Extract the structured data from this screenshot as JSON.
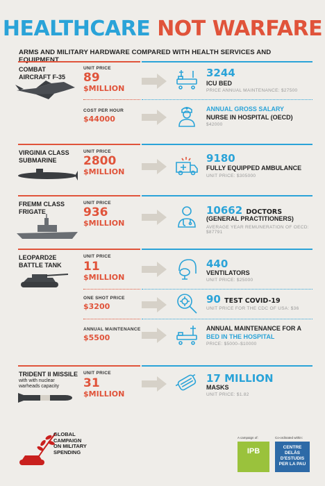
{
  "title": {
    "part1": "HEALTHCARE",
    "part2": "NOT WARFARE"
  },
  "subtitle": "ARMS AND MILITARY HARDWARE COMPARED WITH HEALTH SERVICES AND EQUIPMENT",
  "rows": {
    "f35": {
      "name1": "COMBAT",
      "name2": "AIRCRAFT F-35",
      "price_label": "UNIT PRICE",
      "price": "89",
      "unit": "$MILLION",
      "health_value": "3244",
      "health_line": "ICU BED",
      "health_note": "PRICE ANNUAL MAINTENANCE: $27500",
      "price2_label": "COST PER HOUR",
      "price2": "$44000",
      "health2_line1": "ANNUAL GROSS SALARY",
      "health2_line2": "NURSE IN HOSPITAL (OECD)",
      "health2_note": "$42000"
    },
    "sub": {
      "name1": "VIRGINIA CLASS",
      "name2": "SUBMARINE",
      "price_label": "UNIT PRICE",
      "price": "2800",
      "unit": "$MILLION",
      "health_value": "9180",
      "health_line": "FULLY EQUIPPED AMBULANCE",
      "health_note": "UNIT PRICE: $305000"
    },
    "frigate": {
      "name1": "FREMM CLASS",
      "name2": "FRIGATE",
      "price_label": "UNIT PRICE",
      "price": "936",
      "unit": "$MILLION",
      "health_value": "10662",
      "health_value_text": "DOCTORS",
      "health_line": "(GENERAL PRACTITIONERS)",
      "health_note": "AVERAGE YEAR REMUNERATION OF OECD: $87791"
    },
    "tank": {
      "name1": "LEOPARD2E",
      "name2": "BATTLE TANK",
      "price_label": "UNIT PRICE",
      "price": "11",
      "unit": "$MILLION",
      "health_value": "440",
      "health_line": "VENTILATORS",
      "health_note": "UNIT PRICE: $25000",
      "price2_label": "ONE SHOT PRICE",
      "price2": "$3200",
      "health2_value": "90",
      "health2_value_text": "TEST COVID-19",
      "health2_note": "UNIT PRICE FOR THE CDC OF USA: $36",
      "price3_label": "ANNUAL MAINTENANCE",
      "price3": "$5500",
      "health3_line1": "ANNUAL MAINTENANCE FOR A",
      "health3_line2": "BED IN THE HOSPITAL",
      "health3_note": "PRICE: $5000–$10000"
    },
    "trident": {
      "name1": "TRIDENT II MISSILE",
      "sub1": "with with nuclear",
      "sub2": "warheads capacity",
      "price_label": "UNIT PRICE",
      "price": "31",
      "unit": "$MILLION",
      "health_value": "17 MILLION",
      "health_line": "MASKS",
      "health_note": "UNIT PRICE: $1.82"
    }
  },
  "footer": {
    "gc1": "GLOBAL",
    "gc2": "CAMPAIGN",
    "gc3": "ON MILITARY",
    "gc4": "SPENDING",
    "campaign_of": "A campaign of:",
    "coordinated": "Co-ordinated within:",
    "ipb": "IPB",
    "cd1": "CENTRE DELÀS",
    "cd2": "D'ESTUDIS",
    "cd3": "PER LA PAU"
  },
  "colors": {
    "red": "#e0533a",
    "blue": "#2aa3d8",
    "background": "#efede9"
  }
}
